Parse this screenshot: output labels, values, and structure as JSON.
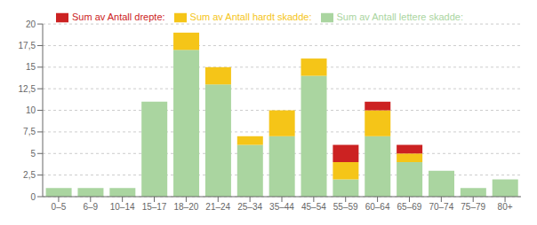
{
  "chart_data": {
    "type": "bar",
    "stacked": true,
    "categories": [
      "0–5",
      "6–9",
      "10–14",
      "15–17",
      "18–20",
      "21–24",
      "25–34",
      "35–44",
      "45–54",
      "55–59",
      "60–64",
      "65–69",
      "70–74",
      "75–79",
      "80+"
    ],
    "series": [
      {
        "name": "Sum av Antall lettere skadde:",
        "color": "#aad5a0",
        "values": [
          1,
          1,
          1,
          11,
          17,
          13,
          6,
          7,
          14,
          2,
          7,
          4,
          3,
          1,
          2
        ]
      },
      {
        "name": "Sum av Antall hardt skadde:",
        "color": "#f5c518",
        "values": [
          0,
          0,
          0,
          0,
          2,
          2,
          1,
          3,
          2,
          2,
          3,
          1,
          0,
          0,
          0
        ]
      },
      {
        "name": "Sum av Antall drepte:",
        "color": "#cc2222",
        "values": [
          0,
          0,
          0,
          0,
          0,
          0,
          0,
          0,
          0,
          2,
          1,
          1,
          0,
          0,
          0
        ]
      }
    ],
    "ylim": [
      0,
      20
    ],
    "yticks": [
      0,
      {
        "value": 2.5,
        "label": "2,5"
      },
      5,
      {
        "value": 7.5,
        "label": "7,5"
      },
      10,
      {
        "value": 12.5,
        "label": "12,5"
      },
      15,
      {
        "value": 17.5,
        "label": "17,5"
      },
      20
    ],
    "grid": true,
    "legend": "top"
  }
}
